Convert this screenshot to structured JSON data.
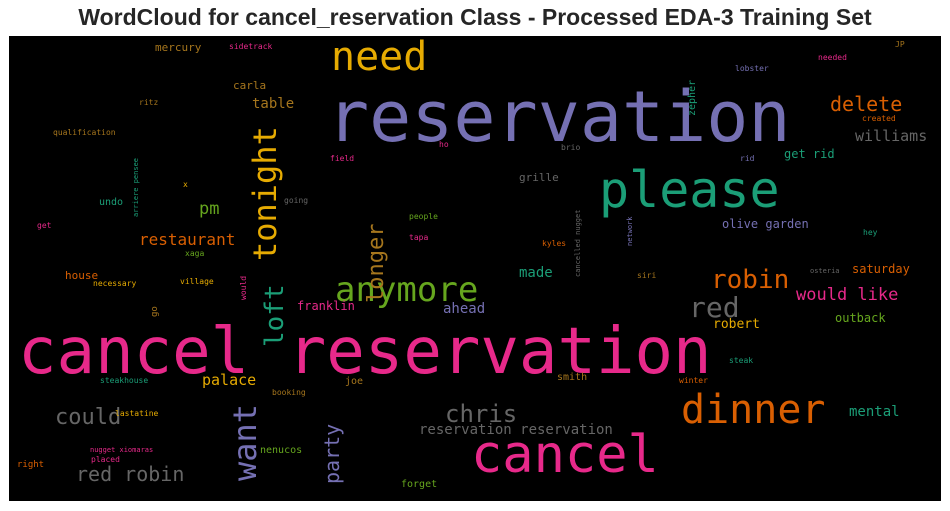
{
  "title": "WordCloud for cancel_reservation Class - Processed EDA-3 Training Set",
  "palette": {
    "background": "#000000",
    "teal": "#1b9e77",
    "orange": "#d95f02",
    "purple": "#7570b3",
    "magenta": "#e7298a",
    "green": "#66a61e",
    "yellow": "#e6ab02",
    "brown": "#a6761d",
    "gray": "#666666"
  },
  "words": [
    {
      "text": "reservation",
      "color": "#7570b3"
    },
    {
      "text": "cancel reservation",
      "color": "#e7298a"
    },
    {
      "text": "cancel",
      "color": "#e7298a"
    },
    {
      "text": "please",
      "color": "#1b9e77"
    },
    {
      "text": "dinner",
      "color": "#d95f02"
    },
    {
      "text": "need",
      "color": "#e6ab02"
    },
    {
      "text": "tonight",
      "color": "#e6ab02"
    },
    {
      "text": "want",
      "color": "#7570b3"
    },
    {
      "text": "anymore",
      "color": "#66a61e"
    },
    {
      "text": "loft",
      "color": "#1b9e77"
    },
    {
      "text": "longer",
      "color": "#a6761d"
    },
    {
      "text": "red",
      "color": "#666666"
    },
    {
      "text": "robin",
      "color": "#d95f02"
    },
    {
      "text": "chris",
      "color": "#666666"
    },
    {
      "text": "delete",
      "color": "#d95f02"
    },
    {
      "text": "party",
      "color": "#7570b3"
    },
    {
      "text": "could",
      "color": "#666666"
    },
    {
      "text": "red robin",
      "color": "#666666"
    },
    {
      "text": "restaurant",
      "color": "#d95f02"
    },
    {
      "text": "would like",
      "color": "#e7298a"
    },
    {
      "text": "pm",
      "color": "#66a61e"
    },
    {
      "text": "made",
      "color": "#1b9e77"
    },
    {
      "text": "palace",
      "color": "#e6ab02"
    },
    {
      "text": "williams",
      "color": "#666666"
    },
    {
      "text": "mental",
      "color": "#1b9e77"
    },
    {
      "text": "robert",
      "color": "#e6ab02"
    },
    {
      "text": "reservation reservation",
      "color": "#666666"
    },
    {
      "text": "table",
      "color": "#a6761d"
    },
    {
      "text": "ahead",
      "color": "#7570b3"
    },
    {
      "text": "franklin",
      "color": "#e7298a"
    },
    {
      "text": "get rid",
      "color": "#1b9e77"
    },
    {
      "text": "olive garden",
      "color": "#7570b3"
    },
    {
      "text": "saturday",
      "color": "#d95f02"
    },
    {
      "text": "outback",
      "color": "#66a61e"
    },
    {
      "text": "house",
      "color": "#d95f02"
    },
    {
      "text": "mercury",
      "color": "#a6761d"
    },
    {
      "text": "carla",
      "color": "#a6761d"
    },
    {
      "text": "grille",
      "color": "#666666"
    },
    {
      "text": "undo",
      "color": "#1b9e77"
    },
    {
      "text": "zepher",
      "color": "#1b9e77"
    },
    {
      "text": "joe",
      "color": "#a6761d"
    },
    {
      "text": "smith",
      "color": "#a6761d"
    },
    {
      "text": "nenucos",
      "color": "#66a61e"
    },
    {
      "text": "forget",
      "color": "#66a61e"
    },
    {
      "text": "steakhouse",
      "color": "#1b9e77"
    },
    {
      "text": "go",
      "color": "#a6761d"
    },
    {
      "text": "would",
      "color": "#e7298a"
    },
    {
      "text": "right",
      "color": "#d95f02"
    },
    {
      "text": "sidetrack",
      "color": "#e7298a"
    },
    {
      "text": "lobster",
      "color": "#7570b3"
    },
    {
      "text": "needed",
      "color": "#e7298a"
    },
    {
      "text": "JP",
      "color": "#a6761d"
    },
    {
      "text": "created",
      "color": "#d95f02"
    },
    {
      "text": "ritz",
      "color": "#a6761d"
    },
    {
      "text": "qualification",
      "color": "#a6761d"
    },
    {
      "text": "arriere pensee",
      "color": "#1b9e77"
    },
    {
      "text": "field",
      "color": "#e7298a"
    },
    {
      "text": "ho",
      "color": "#e7298a"
    },
    {
      "text": "brio",
      "color": "#666666"
    },
    {
      "text": "rid",
      "color": "#7570b3"
    },
    {
      "text": "x",
      "color": "#e6ab02"
    },
    {
      "text": "going",
      "color": "#666666"
    },
    {
      "text": "get",
      "color": "#e7298a"
    },
    {
      "text": "people",
      "color": "#66a61e"
    },
    {
      "text": "tapa",
      "color": "#e7298a"
    },
    {
      "text": "cancelled nugget",
      "color": "#666666"
    },
    {
      "text": "network",
      "color": "#7570b3"
    },
    {
      "text": "hey",
      "color": "#1b9e77"
    },
    {
      "text": "xaga",
      "color": "#66a61e"
    },
    {
      "text": "kyles",
      "color": "#d95f02"
    },
    {
      "text": "siri",
      "color": "#a6761d"
    },
    {
      "text": "osteria",
      "color": "#666666"
    },
    {
      "text": "necessary",
      "color": "#e6ab02"
    },
    {
      "text": "village",
      "color": "#e6ab02"
    },
    {
      "text": "steak",
      "color": "#1b9e77"
    },
    {
      "text": "winter",
      "color": "#d95f02"
    },
    {
      "text": "booking",
      "color": "#a6761d"
    },
    {
      "text": "lastatine",
      "color": "#e6ab02"
    },
    {
      "text": "nugget xiomaras",
      "color": "#e7298a"
    },
    {
      "text": "placed",
      "color": "#e7298a"
    }
  ]
}
